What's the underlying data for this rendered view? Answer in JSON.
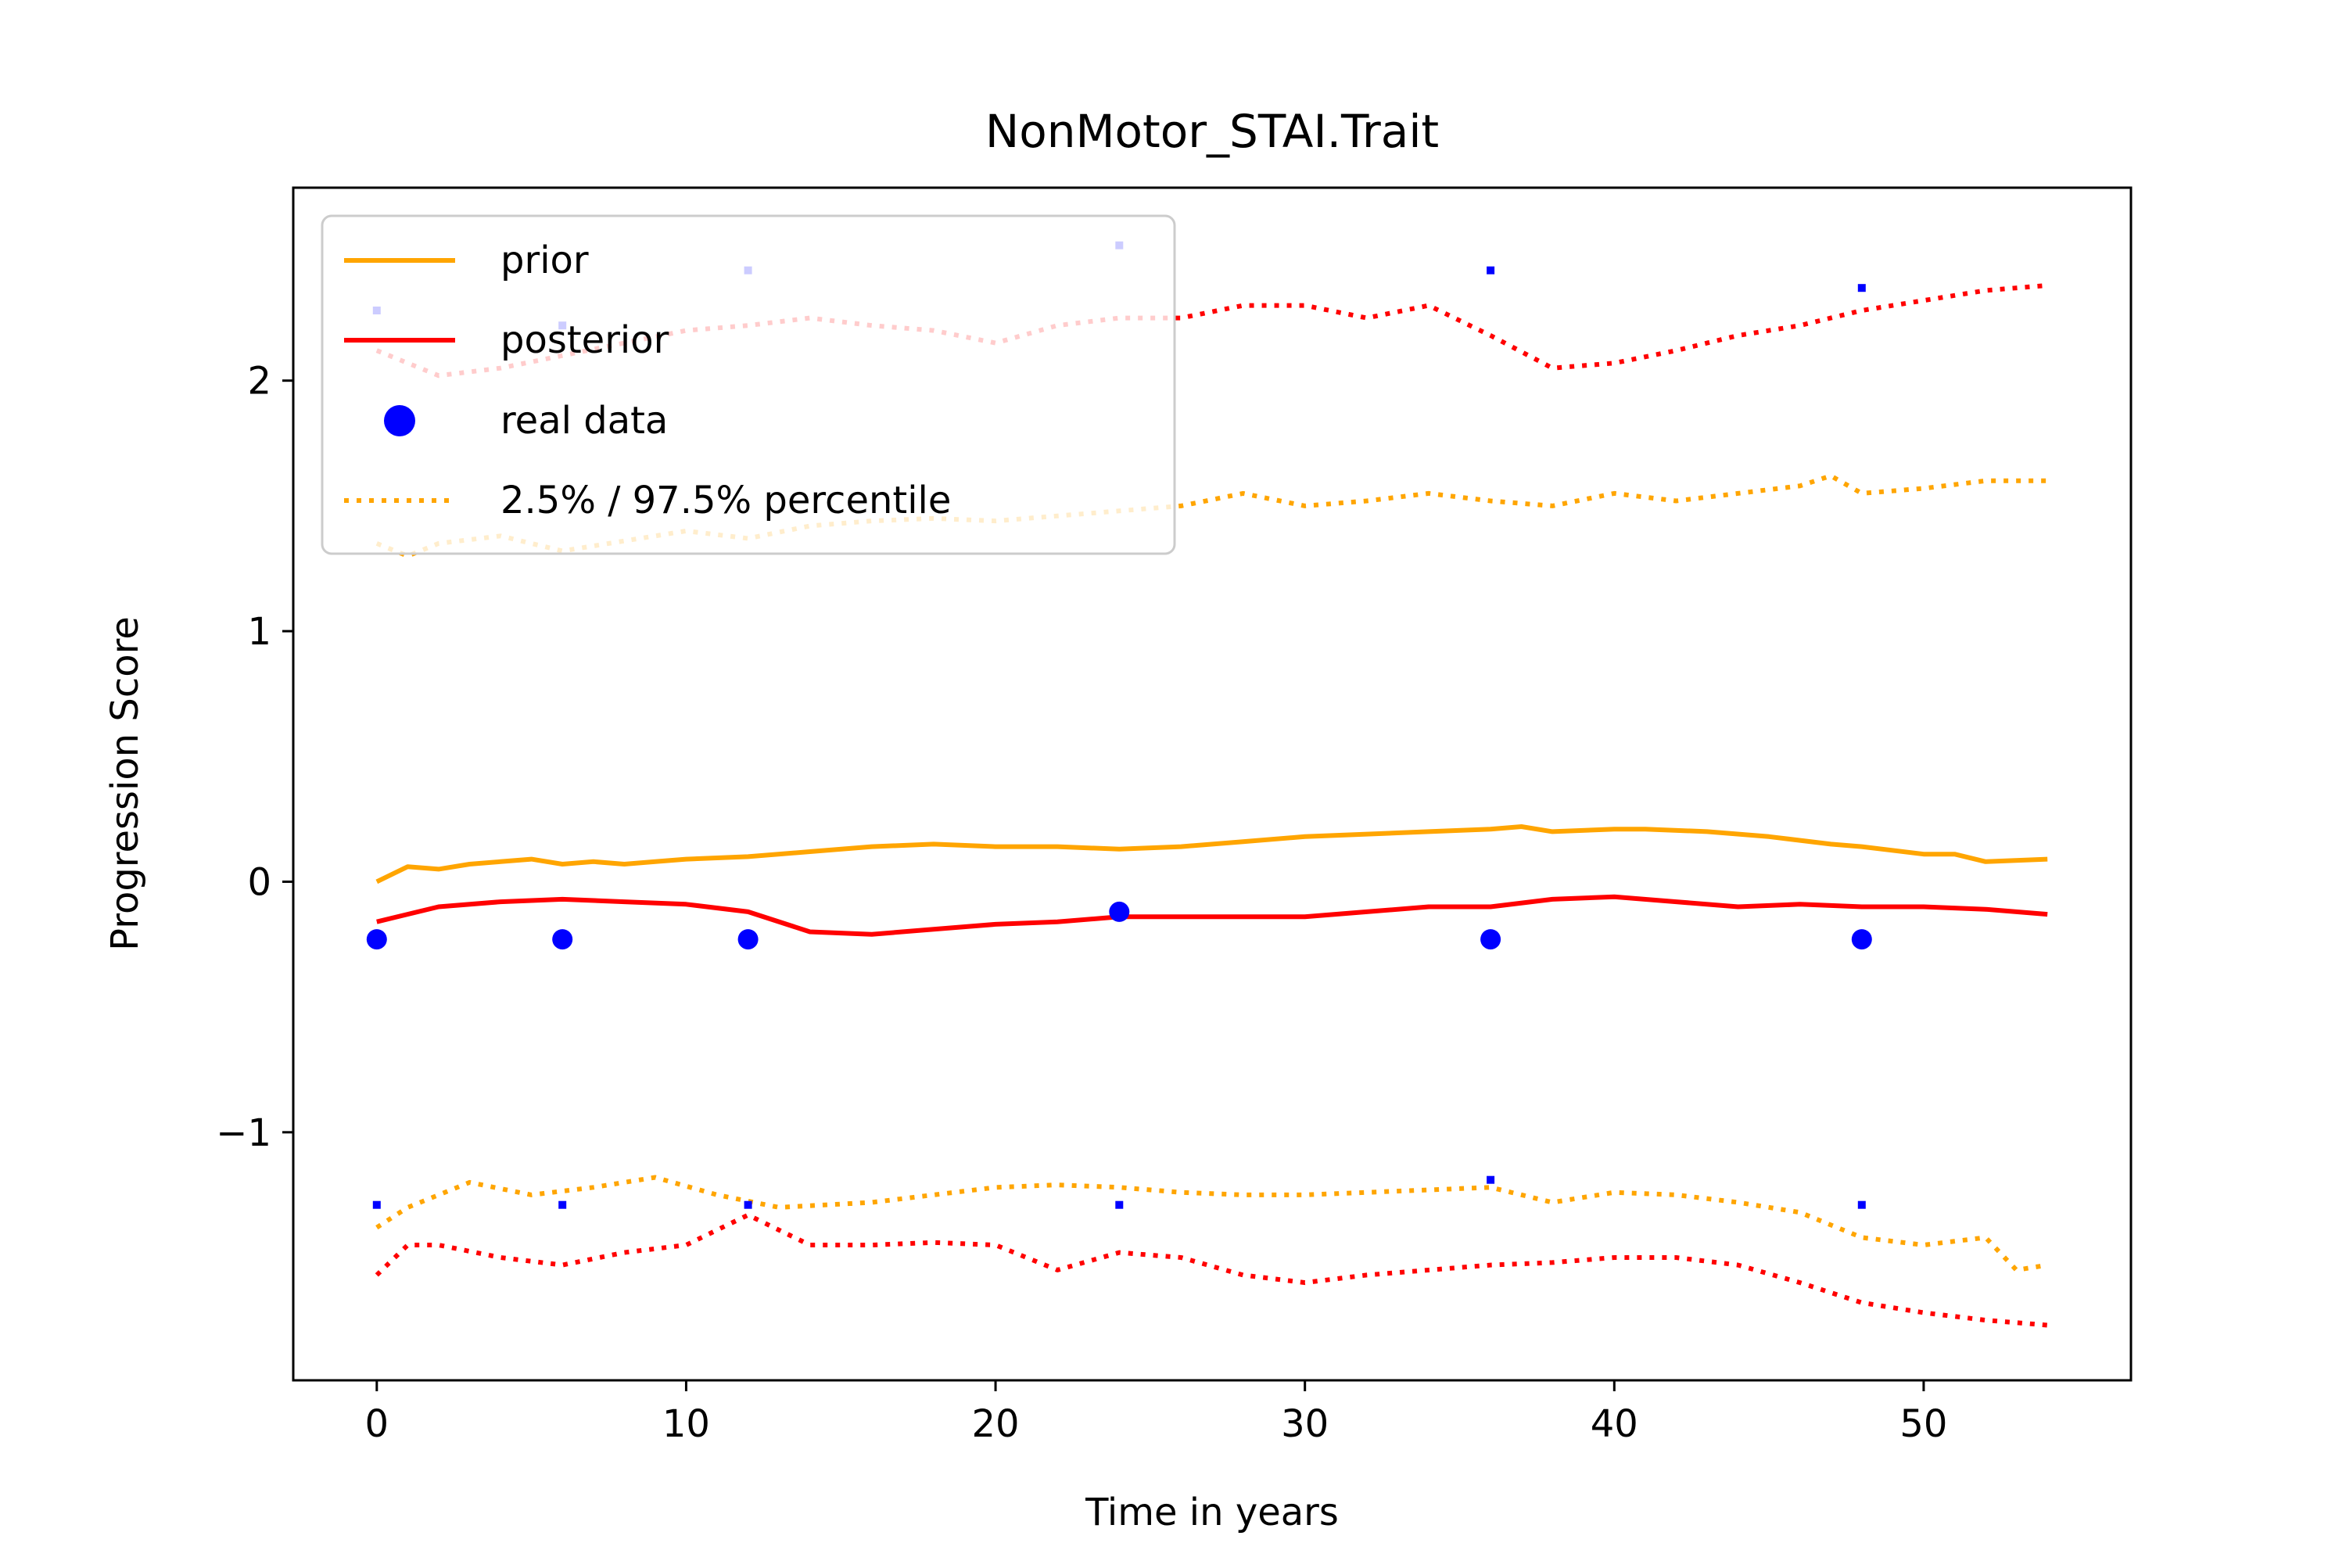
{
  "chart_data": {
    "type": "line",
    "title": "NonMotor_STAI.Trait",
    "xlabel": "Time in years",
    "ylabel": "Progression Score",
    "xlim": [
      -2.7,
      56.7
    ],
    "ylim": [
      -1.99,
      2.77
    ],
    "x_ticks": [
      0,
      10,
      20,
      30,
      40,
      50
    ],
    "y_ticks": [
      -1,
      0,
      1,
      2
    ],
    "x_tick_labels": [
      "0",
      "10",
      "20",
      "30",
      "40",
      "50"
    ],
    "y_tick_labels": [
      "−1",
      "0",
      "1",
      "2"
    ],
    "grid": false,
    "legend_position": "top-left",
    "legend": [
      {
        "label": "prior",
        "style": "solid",
        "color": "#ffa500"
      },
      {
        "label": "posterior",
        "style": "solid",
        "color": "#ff0000"
      },
      {
        "label": "real data",
        "style": "marker",
        "color": "#0000ff"
      },
      {
        "label": "2.5% / 97.5% percentile",
        "style": "dotted",
        "color": "#ffa500"
      }
    ],
    "series": [
      {
        "name": "prior",
        "color": "#ffa500",
        "style": "solid",
        "points": [
          [
            0,
            0.0
          ],
          [
            1,
            0.06
          ],
          [
            2,
            0.05
          ],
          [
            3,
            0.07
          ],
          [
            4,
            0.08
          ],
          [
            5,
            0.09
          ],
          [
            6,
            0.07
          ],
          [
            7,
            0.08
          ],
          [
            8,
            0.07
          ],
          [
            9,
            0.08
          ],
          [
            10,
            0.09
          ],
          [
            12,
            0.1
          ],
          [
            14,
            0.12
          ],
          [
            16,
            0.14
          ],
          [
            18,
            0.15
          ],
          [
            20,
            0.14
          ],
          [
            22,
            0.14
          ],
          [
            24,
            0.13
          ],
          [
            26,
            0.14
          ],
          [
            28,
            0.16
          ],
          [
            30,
            0.18
          ],
          [
            32,
            0.19
          ],
          [
            34,
            0.2
          ],
          [
            36,
            0.21
          ],
          [
            37,
            0.22
          ],
          [
            38,
            0.2
          ],
          [
            40,
            0.21
          ],
          [
            41,
            0.21
          ],
          [
            43,
            0.2
          ],
          [
            45,
            0.18
          ],
          [
            47,
            0.15
          ],
          [
            48,
            0.14
          ],
          [
            50,
            0.11
          ],
          [
            51,
            0.11
          ],
          [
            52,
            0.08
          ],
          [
            54,
            0.09
          ]
        ]
      },
      {
        "name": "posterior",
        "color": "#ff0000",
        "style": "solid",
        "points": [
          [
            0,
            -0.16
          ],
          [
            2,
            -0.1
          ],
          [
            4,
            -0.08
          ],
          [
            6,
            -0.07
          ],
          [
            8,
            -0.08
          ],
          [
            10,
            -0.09
          ],
          [
            12,
            -0.12
          ],
          [
            14,
            -0.2
          ],
          [
            16,
            -0.21
          ],
          [
            18,
            -0.19
          ],
          [
            20,
            -0.17
          ],
          [
            22,
            -0.16
          ],
          [
            24,
            -0.14
          ],
          [
            26,
            -0.14
          ],
          [
            28,
            -0.14
          ],
          [
            30,
            -0.14
          ],
          [
            32,
            -0.12
          ],
          [
            34,
            -0.1
          ],
          [
            36,
            -0.1
          ],
          [
            38,
            -0.07
          ],
          [
            40,
            -0.06
          ],
          [
            42,
            -0.08
          ],
          [
            44,
            -0.1
          ],
          [
            46,
            -0.09
          ],
          [
            48,
            -0.1
          ],
          [
            50,
            -0.1
          ],
          [
            52,
            -0.11
          ],
          [
            54,
            -0.13
          ]
        ]
      },
      {
        "name": "prior 97.5% percentile",
        "color": "#ffa500",
        "style": "dotted",
        "points": [
          [
            0,
            1.35
          ],
          [
            1,
            1.3
          ],
          [
            2,
            1.35
          ],
          [
            4,
            1.38
          ],
          [
            6,
            1.32
          ],
          [
            8,
            1.36
          ],
          [
            10,
            1.4
          ],
          [
            12,
            1.37
          ],
          [
            14,
            1.42
          ],
          [
            16,
            1.44
          ],
          [
            18,
            1.45
          ],
          [
            20,
            1.44
          ],
          [
            22,
            1.46
          ],
          [
            24,
            1.48
          ],
          [
            26,
            1.5
          ],
          [
            28,
            1.55
          ],
          [
            30,
            1.5
          ],
          [
            32,
            1.52
          ],
          [
            34,
            1.55
          ],
          [
            36,
            1.52
          ],
          [
            38,
            1.5
          ],
          [
            40,
            1.55
          ],
          [
            42,
            1.52
          ],
          [
            44,
            1.55
          ],
          [
            46,
            1.58
          ],
          [
            47,
            1.62
          ],
          [
            48,
            1.55
          ],
          [
            50,
            1.57
          ],
          [
            52,
            1.6
          ],
          [
            54,
            1.6
          ]
        ]
      },
      {
        "name": "prior 2.5% percentile",
        "color": "#ffa500",
        "style": "dotted",
        "points": [
          [
            0,
            -1.38
          ],
          [
            1,
            -1.3
          ],
          [
            3,
            -1.2
          ],
          [
            5,
            -1.25
          ],
          [
            7,
            -1.22
          ],
          [
            9,
            -1.18
          ],
          [
            11,
            -1.25
          ],
          [
            13,
            -1.3
          ],
          [
            16,
            -1.28
          ],
          [
            18,
            -1.25
          ],
          [
            20,
            -1.22
          ],
          [
            22,
            -1.21
          ],
          [
            24,
            -1.22
          ],
          [
            26,
            -1.24
          ],
          [
            28,
            -1.25
          ],
          [
            30,
            -1.25
          ],
          [
            32,
            -1.24
          ],
          [
            34,
            -1.23
          ],
          [
            36,
            -1.22
          ],
          [
            38,
            -1.28
          ],
          [
            40,
            -1.24
          ],
          [
            42,
            -1.25
          ],
          [
            44,
            -1.28
          ],
          [
            46,
            -1.32
          ],
          [
            48,
            -1.42
          ],
          [
            50,
            -1.45
          ],
          [
            52,
            -1.42
          ],
          [
            53,
            -1.55
          ],
          [
            54,
            -1.53
          ]
        ]
      },
      {
        "name": "posterior 97.5% percentile",
        "color": "#ff0000",
        "style": "dotted",
        "points": [
          [
            0,
            2.12
          ],
          [
            2,
            2.02
          ],
          [
            4,
            2.05
          ],
          [
            6,
            2.1
          ],
          [
            8,
            2.15
          ],
          [
            10,
            2.2
          ],
          [
            12,
            2.22
          ],
          [
            14,
            2.25
          ],
          [
            16,
            2.22
          ],
          [
            18,
            2.2
          ],
          [
            20,
            2.15
          ],
          [
            22,
            2.22
          ],
          [
            24,
            2.25
          ],
          [
            26,
            2.25
          ],
          [
            28,
            2.3
          ],
          [
            30,
            2.3
          ],
          [
            32,
            2.25
          ],
          [
            34,
            2.3
          ],
          [
            36,
            2.18
          ],
          [
            38,
            2.05
          ],
          [
            40,
            2.07
          ],
          [
            42,
            2.12
          ],
          [
            44,
            2.18
          ],
          [
            46,
            2.22
          ],
          [
            48,
            2.28
          ],
          [
            50,
            2.32
          ],
          [
            52,
            2.36
          ],
          [
            54,
            2.38
          ]
        ]
      },
      {
        "name": "posterior 2.5% percentile",
        "color": "#ff0000",
        "style": "dotted",
        "points": [
          [
            0,
            -1.57
          ],
          [
            1,
            -1.45
          ],
          [
            2,
            -1.45
          ],
          [
            4,
            -1.5
          ],
          [
            6,
            -1.53
          ],
          [
            8,
            -1.48
          ],
          [
            10,
            -1.45
          ],
          [
            12,
            -1.33
          ],
          [
            14,
            -1.45
          ],
          [
            16,
            -1.45
          ],
          [
            18,
            -1.44
          ],
          [
            20,
            -1.45
          ],
          [
            22,
            -1.55
          ],
          [
            24,
            -1.48
          ],
          [
            26,
            -1.5
          ],
          [
            28,
            -1.57
          ],
          [
            30,
            -1.6
          ],
          [
            32,
            -1.57
          ],
          [
            34,
            -1.55
          ],
          [
            36,
            -1.53
          ],
          [
            38,
            -1.52
          ],
          [
            40,
            -1.5
          ],
          [
            42,
            -1.5
          ],
          [
            44,
            -1.53
          ],
          [
            46,
            -1.6
          ],
          [
            48,
            -1.68
          ],
          [
            50,
            -1.72
          ],
          [
            52,
            -1.75
          ],
          [
            54,
            -1.77
          ]
        ]
      }
    ],
    "real_data": [
      {
        "x": 0,
        "y": -0.23
      },
      {
        "x": 6,
        "y": -0.23
      },
      {
        "x": 12,
        "y": -0.23
      },
      {
        "x": 24,
        "y": -0.12
      },
      {
        "x": 36,
        "y": -0.23
      },
      {
        "x": 48,
        "y": -0.23
      }
    ],
    "small_markers": [
      {
        "x": 0,
        "y": 2.28
      },
      {
        "x": 6,
        "y": 2.22
      },
      {
        "x": 12,
        "y": 2.44
      },
      {
        "x": 24,
        "y": 2.54
      },
      {
        "x": 36,
        "y": 2.44
      },
      {
        "x": 48,
        "y": 2.37
      },
      {
        "x": 0,
        "y": -1.29
      },
      {
        "x": 6,
        "y": -1.29
      },
      {
        "x": 12,
        "y": -1.29
      },
      {
        "x": 24,
        "y": -1.29
      },
      {
        "x": 36,
        "y": -1.19
      },
      {
        "x": 48,
        "y": -1.29
      }
    ]
  }
}
